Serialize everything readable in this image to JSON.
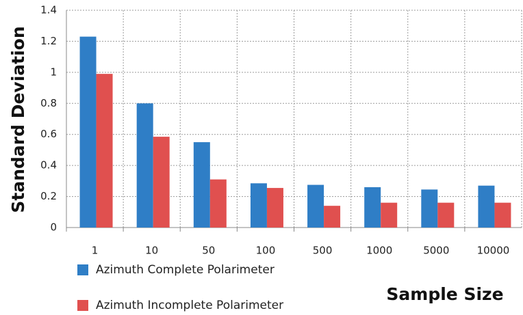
{
  "chart_data": {
    "type": "bar",
    "x_label": "Sample Size",
    "y_label": "Standard Deviation",
    "categories": [
      "1",
      "10",
      "50",
      "100",
      "500",
      "1000",
      "5000",
      "10000"
    ],
    "series": [
      {
        "name": "Azimuth Complete Polarimeter",
        "color": "#2f7ec6",
        "values": [
          1.23,
          0.8,
          0.55,
          0.285,
          0.275,
          0.26,
          0.245,
          0.27
        ]
      },
      {
        "name": "Azimuth Incomplete Polarimeter",
        "color": "#e0504f",
        "values": [
          0.99,
          0.585,
          0.31,
          0.255,
          0.14,
          0.16,
          0.16,
          0.16
        ]
      }
    ],
    "ylim": [
      0,
      1.4
    ],
    "yticks": [
      0,
      0.2,
      0.4,
      0.6,
      0.8,
      1,
      1.2,
      1.4
    ],
    "grid": true
  }
}
